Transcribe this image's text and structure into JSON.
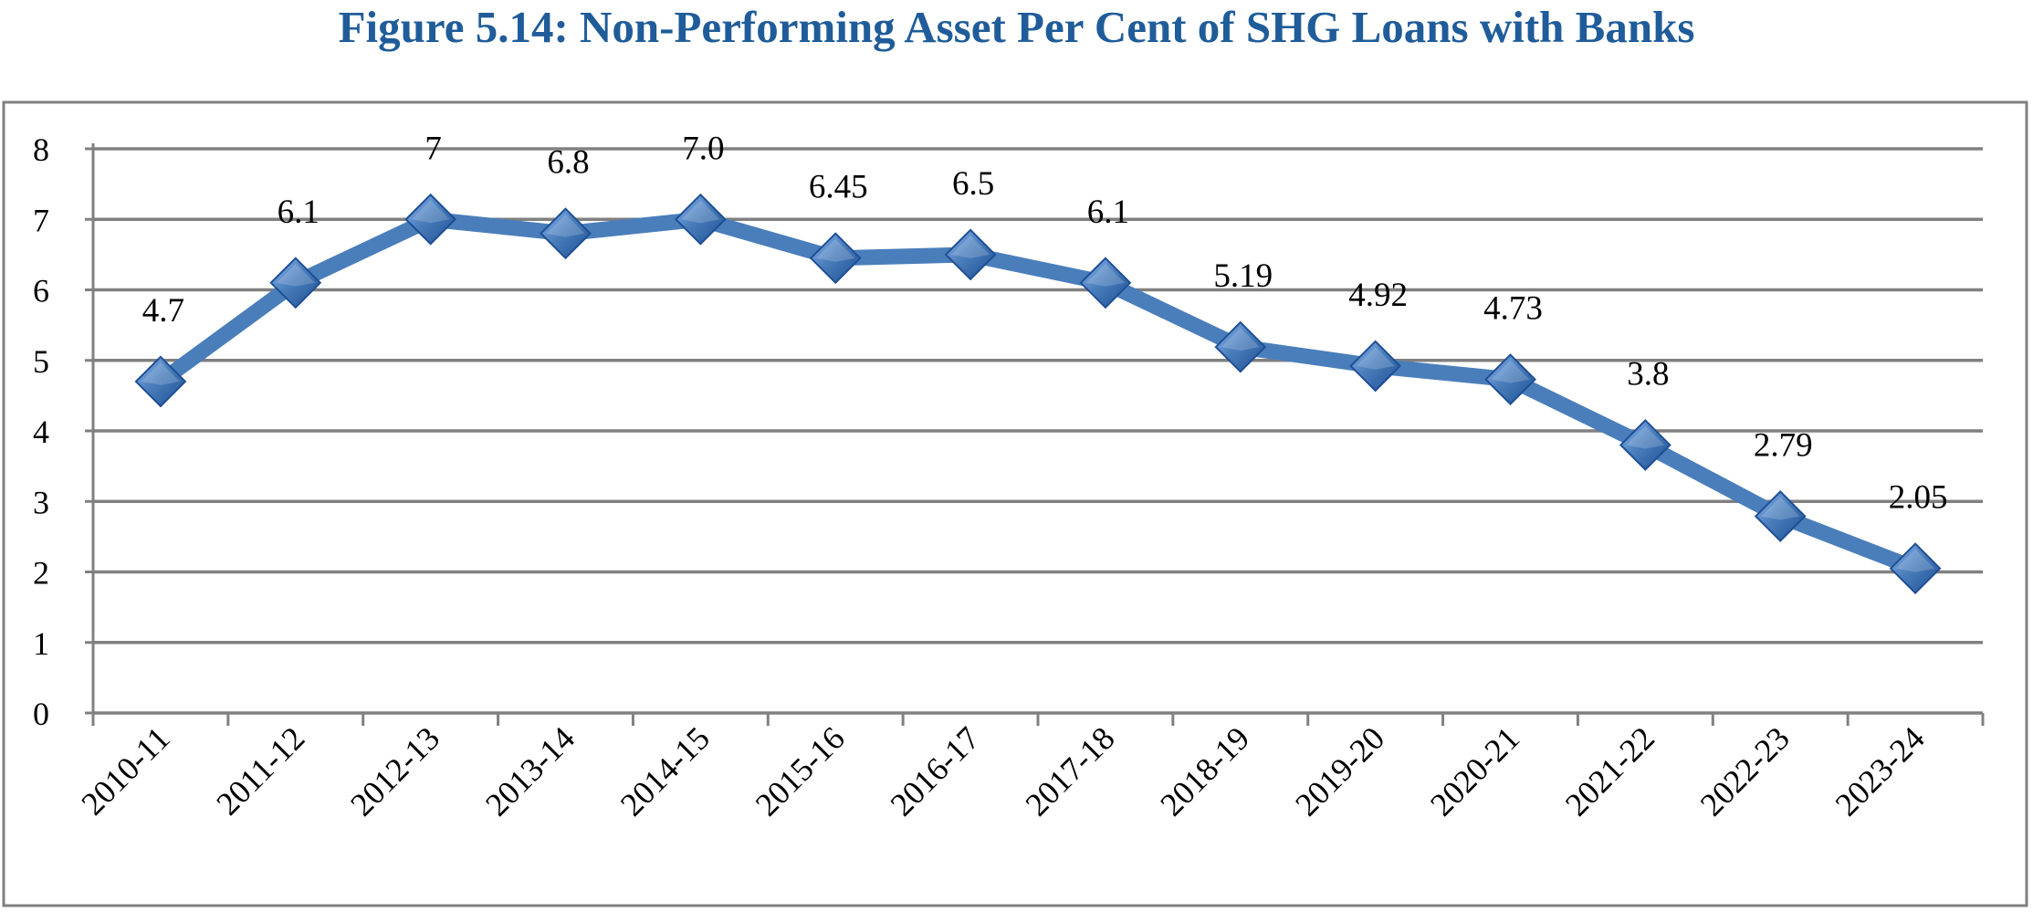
{
  "chart_data": {
    "type": "line",
    "title": "Figure 5.14: Non-Performing Asset Per Cent of SHG Loans with Banks",
    "xlabel": "",
    "ylabel": "",
    "categories": [
      "2010-11",
      "2011-12",
      "2012-13",
      "2013-14",
      "2014-15",
      "2015-16",
      "2016-17",
      "2017-18",
      "2018-19",
      "2019-20",
      "2020-21",
      "2021-22",
      "2022-23",
      "2023-24"
    ],
    "series": [
      {
        "values": [
          4.7,
          6.1,
          7,
          6.8,
          7.0,
          6.45,
          6.5,
          6.1,
          5.19,
          4.92,
          4.73,
          3.8,
          2.79,
          2.05
        ],
        "labels": [
          "4.7",
          "6.1",
          "7",
          "6.8",
          "7.0",
          "6.45",
          "6.5",
          "6.1",
          "5.19",
          "4.92",
          "4.73",
          "3.8",
          "2.79",
          "2.05"
        ]
      }
    ],
    "ylim": [
      0,
      8
    ],
    "yticks": [
      "0",
      "1",
      "2",
      "3",
      "4",
      "5",
      "6",
      "7",
      "8"
    ],
    "grid": true,
    "legend": "none",
    "marker": "diamond",
    "colors": {
      "title": "#1f5c99",
      "line": "#4a7ebb",
      "marker_light": "#6d9eeb",
      "marker_dark": "#1e4f94",
      "grid": "#808080",
      "frame": "#808080"
    }
  }
}
